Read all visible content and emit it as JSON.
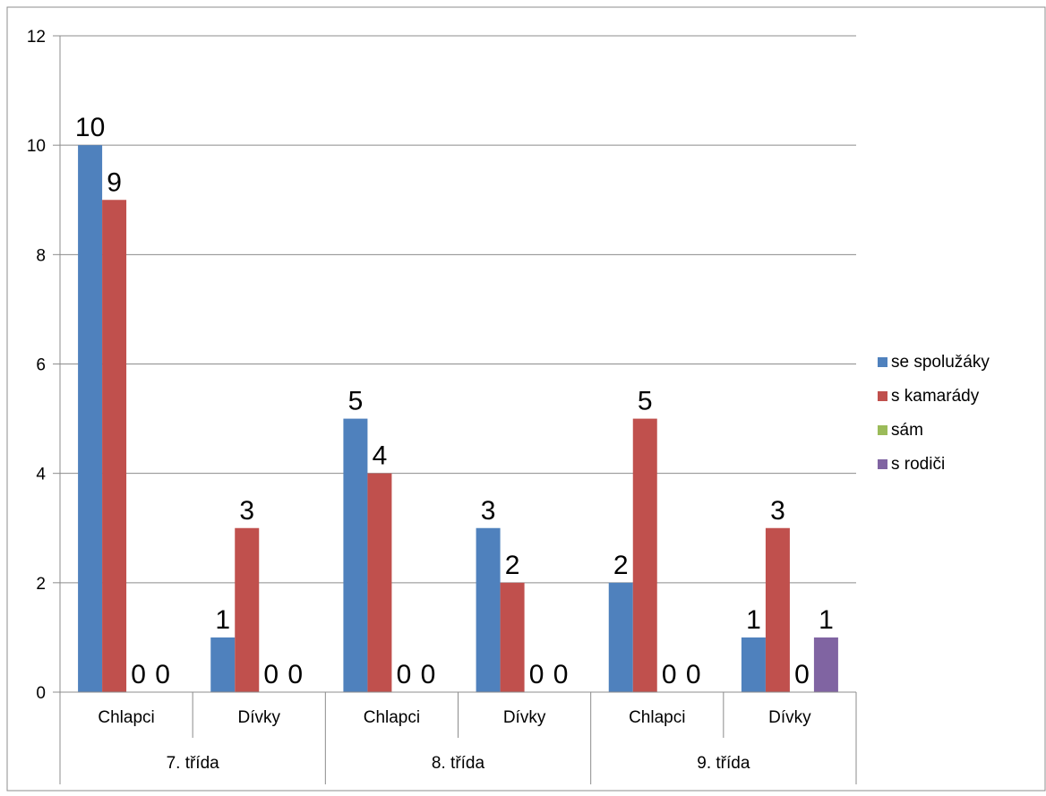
{
  "chart_data": {
    "type": "bar",
    "title": "",
    "xlabel": "",
    "ylabel": "",
    "ylim": [
      0,
      12
    ],
    "yticks": [
      0,
      2,
      4,
      6,
      8,
      10,
      12
    ],
    "grid": true,
    "legend_position": "right",
    "groups": [
      {
        "label": "7. třída",
        "categories": [
          "Chlapci",
          "Dívky"
        ]
      },
      {
        "label": "8. třída",
        "categories": [
          "Chlapci",
          "Dívky"
        ]
      },
      {
        "label": "9. třída",
        "categories": [
          "Chlapci",
          "Dívky"
        ]
      }
    ],
    "categories": [
      "Chlapci",
      "Dívky",
      "Chlapci",
      "Dívky",
      "Chlapci",
      "Dívky"
    ],
    "series": [
      {
        "name": "se spolužáky",
        "color": "#4F81BD",
        "values": [
          10,
          1,
          5,
          3,
          2,
          1
        ],
        "labels": [
          "10",
          "1",
          "5",
          "3",
          "2",
          "1"
        ]
      },
      {
        "name": "s kamarády",
        "color": "#C0504D",
        "values": [
          9,
          3,
          4,
          2,
          5,
          3
        ],
        "labels": [
          "9",
          "3",
          "4",
          "2",
          "5",
          "3"
        ]
      },
      {
        "name": "sám",
        "color": "#9BBB59",
        "values": [
          0,
          0,
          0,
          0,
          0,
          0
        ],
        "labels": [
          "0",
          "0",
          "0",
          "0",
          "0",
          "0"
        ]
      },
      {
        "name": "s rodiči",
        "color": "#8064A2",
        "values": [
          0,
          0,
          0,
          0,
          0,
          1
        ],
        "labels": [
          "0",
          "0",
          "0",
          "0",
          "0",
          "1"
        ]
      }
    ]
  }
}
